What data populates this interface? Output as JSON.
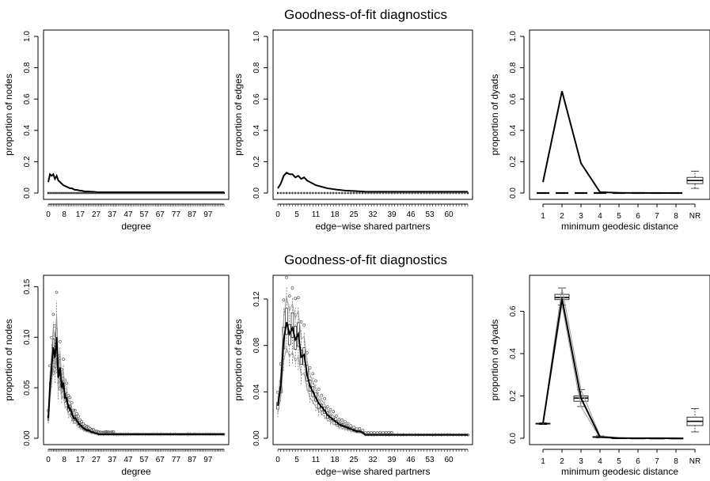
{
  "figure": {
    "panels_count": 6
  },
  "chart_data": [
    {
      "type": "line",
      "title": "Goodness-of-fit diagnostics",
      "row": 0,
      "col": 0,
      "xlabel": "degree",
      "ylabel": "proportion of nodes",
      "x_tick_labels": [
        "0",
        "8",
        "17",
        "27",
        "37",
        "47",
        "57",
        "67",
        "77",
        "87",
        "97"
      ],
      "y_ticks": [
        0,
        0.2,
        0.4,
        0.6,
        0.8,
        1.0
      ],
      "y_tick_labels": [
        "0.0",
        "0.2",
        "0.4",
        "0.6",
        "0.8",
        "1.0"
      ],
      "ylim": [
        0,
        1.0
      ],
      "x_count": 106,
      "observed_shape": [
        0.07,
        0.12,
        0.11,
        0.12,
        0.09,
        0.11,
        0.08,
        0.07,
        0.06,
        0.05,
        0.045,
        0.04,
        0.035,
        0.03,
        0.03,
        0.025,
        0.02,
        0.02,
        0.018,
        0.015,
        0.015,
        0.012,
        0.01,
        0.01,
        0.01,
        0.009,
        0.008,
        0.008,
        0.007,
        0.006
      ],
      "observed_tail": 0.005,
      "simulated_level": 0.0,
      "boxplots": false
    },
    {
      "type": "line",
      "row": 0,
      "col": 1,
      "xlabel": "edge−wise shared partners",
      "ylabel": "proportion of edges",
      "x_tick_labels": [
        "0",
        "5",
        "11",
        "18",
        "25",
        "32",
        "39",
        "46",
        "53",
        "60"
      ],
      "y_ticks": [
        0,
        0.2,
        0.4,
        0.6,
        0.8,
        1.0
      ],
      "y_tick_labels": [
        "0.0",
        "0.2",
        "0.4",
        "0.6",
        "0.8",
        "1.0"
      ],
      "ylim": [
        0,
        1.0
      ],
      "x_count": 66,
      "observed_shape": [
        0.03,
        0.06,
        0.11,
        0.13,
        0.12,
        0.12,
        0.1,
        0.11,
        0.09,
        0.1,
        0.08,
        0.07,
        0.06,
        0.05,
        0.045,
        0.04,
        0.035,
        0.03,
        0.028,
        0.025,
        0.022,
        0.02,
        0.018,
        0.016,
        0.015,
        0.014,
        0.013,
        0.012,
        0.011,
        0.01
      ],
      "observed_tail": 0.008,
      "simulated_level": 0.0,
      "boxplots": false
    },
    {
      "type": "line",
      "row": 0,
      "col": 2,
      "xlabel": "minimum geodesic distance",
      "ylabel": "proportion of dyads",
      "categories": [
        "1",
        "2",
        "3",
        "4",
        "5",
        "6",
        "7",
        "8",
        "NR"
      ],
      "y_ticks": [
        0,
        0.2,
        0.4,
        0.6,
        0.8,
        1.0
      ],
      "y_tick_labels": [
        "0.0",
        "0.2",
        "0.4",
        "0.6",
        "0.8",
        "1.0"
      ],
      "ylim": [
        0,
        1.0
      ],
      "observed": [
        0.07,
        0.65,
        0.19,
        0.006,
        0.001,
        0.0005,
        0.0003,
        0.0002
      ],
      "simulated_level": 0.0,
      "nr_box": {
        "min": 0.03,
        "q1": 0.06,
        "median": 0.08,
        "q3": 0.1,
        "max": 0.14
      }
    },
    {
      "type": "line",
      "title": "Goodness-of-fit diagnostics",
      "row": 1,
      "col": 0,
      "xlabel": "degree",
      "ylabel": "proportion of nodes",
      "x_tick_labels": [
        "0",
        "8",
        "17",
        "27",
        "37",
        "47",
        "57",
        "67",
        "77",
        "87",
        "97"
      ],
      "y_ticks": [
        0,
        0.05,
        0.1,
        0.15
      ],
      "y_tick_labels": [
        "0.00",
        "0.05",
        "0.10",
        "0.15"
      ],
      "ylim": [
        0,
        0.155
      ],
      "x_count": 106,
      "observed_shape": [
        0.02,
        0.05,
        0.07,
        0.09,
        0.08,
        0.1,
        0.06,
        0.07,
        0.05,
        0.055,
        0.04,
        0.04,
        0.03,
        0.03,
        0.025,
        0.02,
        0.02,
        0.018,
        0.015,
        0.013,
        0.012,
        0.01,
        0.009,
        0.008,
        0.008,
        0.007,
        0.006,
        0.006,
        0.005,
        0.005
      ],
      "observed_tail": 0.004,
      "boxplots": true
    },
    {
      "type": "line",
      "row": 1,
      "col": 1,
      "xlabel": "edge−wise shared partners",
      "ylabel": "proportion of edges",
      "x_tick_labels": [
        "0",
        "5",
        "11",
        "18",
        "25",
        "32",
        "39",
        "46",
        "53",
        "60"
      ],
      "y_ticks": [
        0,
        0.04,
        0.08,
        0.12
      ],
      "y_tick_labels": [
        "0.00",
        "0.04",
        "0.08",
        "0.12"
      ],
      "ylim": [
        0,
        0.135
      ],
      "x_count": 66,
      "observed_shape": [
        0.028,
        0.045,
        0.085,
        0.1,
        0.09,
        0.095,
        0.085,
        0.09,
        0.07,
        0.072,
        0.055,
        0.045,
        0.04,
        0.035,
        0.03,
        0.027,
        0.024,
        0.02,
        0.018,
        0.016,
        0.014,
        0.012,
        0.011,
        0.01,
        0.009,
        0.008,
        0.007,
        0.006,
        0.006,
        0.005
      ],
      "observed_tail": 0.003,
      "boxplots": true
    },
    {
      "type": "line",
      "row": 1,
      "col": 2,
      "xlabel": "minimum geodesic distance",
      "ylabel": "proportion of dyads",
      "categories": [
        "1",
        "2",
        "3",
        "4",
        "5",
        "6",
        "7",
        "8",
        "NR"
      ],
      "y_ticks": [
        0,
        0.2,
        0.4,
        0.6
      ],
      "y_tick_labels": [
        "0.0",
        "0.2",
        "0.4",
        "0.6"
      ],
      "ylim": [
        0,
        0.74
      ],
      "observed": [
        0.07,
        0.66,
        0.19,
        0.006,
        0.001,
        0.0005,
        0.0003,
        0.0002
      ],
      "boxes": [
        {
          "min": 0.065,
          "q1": 0.067,
          "median": 0.069,
          "q3": 0.071,
          "max": 0.073
        },
        {
          "min": 0.63,
          "q1": 0.655,
          "median": 0.665,
          "q3": 0.68,
          "max": 0.71
        },
        {
          "min": 0.15,
          "q1": 0.175,
          "median": 0.19,
          "q3": 0.2,
          "max": 0.23
        },
        {
          "min": 0.002,
          "q1": 0.004,
          "median": 0.006,
          "q3": 0.008,
          "max": 0.012
        },
        {
          "min": 0.0,
          "q1": 0.0005,
          "median": 0.001,
          "q3": 0.0015,
          "max": 0.003
        },
        {
          "min": 0.0,
          "q1": 0.0002,
          "median": 0.0005,
          "q3": 0.0008,
          "max": 0.0015
        },
        {
          "min": 0.0,
          "q1": 0.0001,
          "median": 0.0003,
          "q3": 0.0005,
          "max": 0.001
        },
        {
          "min": 0.0,
          "q1": 0.0001,
          "median": 0.0002,
          "q3": 0.0004,
          "max": 0.0008
        }
      ],
      "nr_box": {
        "min": 0.03,
        "q1": 0.06,
        "median": 0.08,
        "q3": 0.1,
        "max": 0.14
      }
    }
  ]
}
